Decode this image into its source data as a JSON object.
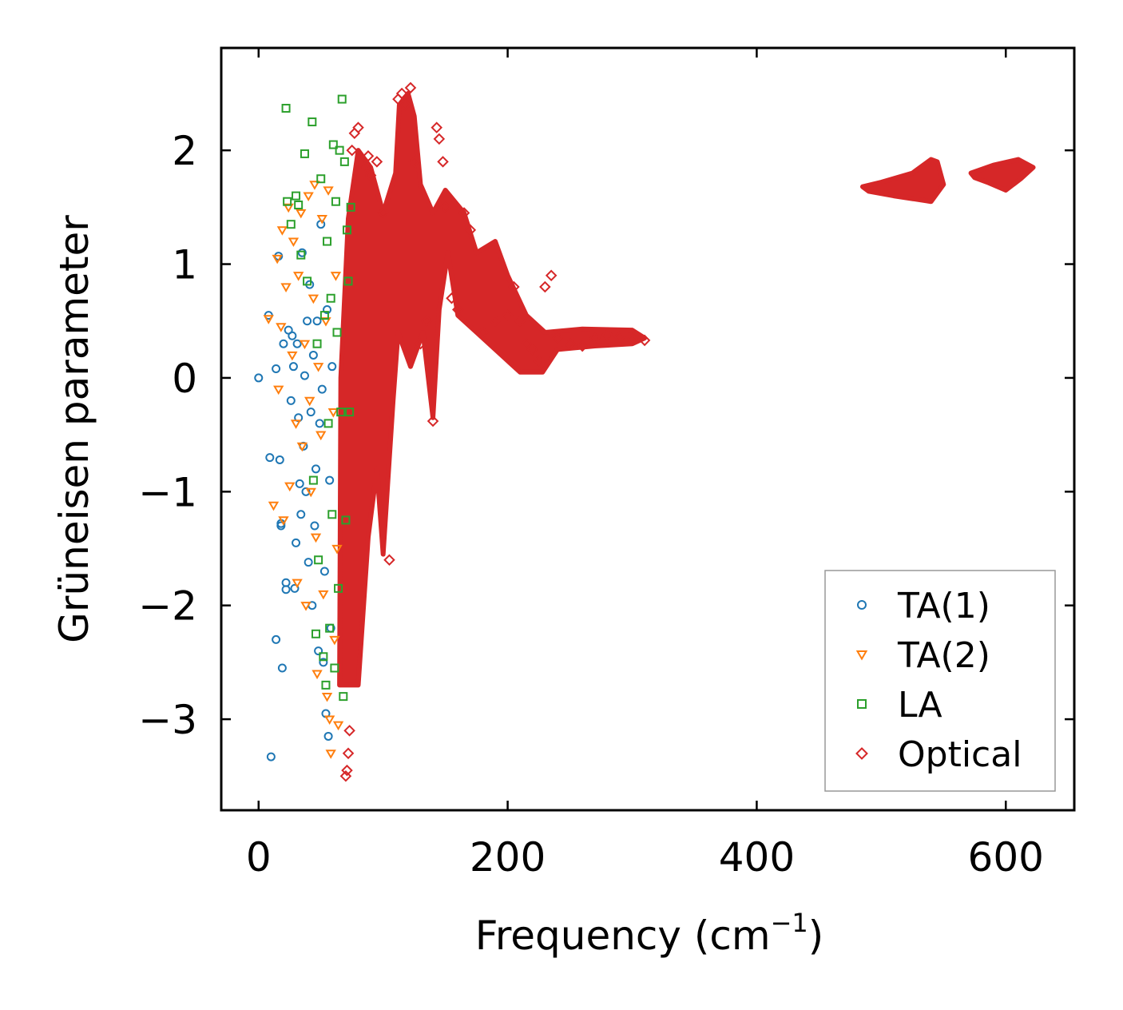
{
  "chart_data": {
    "type": "scatter",
    "title": "",
    "xlabel": "Frequency (cm",
    "xlabel_sup": "−1",
    "xlabel_end": ")",
    "ylabel": "Grüneisen parameter",
    "xlim": [
      -30,
      655
    ],
    "ylim": [
      -3.8,
      2.9
    ],
    "xticks": [
      0,
      200,
      400,
      600
    ],
    "xtick_labels": [
      "0",
      "200",
      "400",
      "600"
    ],
    "yticks": [
      -3,
      -2,
      -1,
      0,
      1,
      2
    ],
    "ytick_labels": [
      "−3",
      "−2",
      "−1",
      "0",
      "1",
      "2"
    ],
    "legend_position": "lower-right",
    "series": [
      {
        "name": "TA(1)",
        "marker": "circle",
        "color": "#1f77b4",
        "points": [
          [
            0,
            0
          ],
          [
            8,
            0.55
          ],
          [
            9,
            -0.7
          ],
          [
            10,
            -3.33
          ],
          [
            14,
            -2.3
          ],
          [
            14,
            0.08
          ],
          [
            16,
            1.07
          ],
          [
            17,
            -0.72
          ],
          [
            18,
            -1.28
          ],
          [
            18,
            -1.3
          ],
          [
            19,
            -2.55
          ],
          [
            20,
            0.3
          ],
          [
            22,
            -1.8
          ],
          [
            22,
            -1.86
          ],
          [
            24,
            0.42
          ],
          [
            26,
            -0.2
          ],
          [
            27,
            0.37
          ],
          [
            28,
            0.1
          ],
          [
            29,
            -1.85
          ],
          [
            30,
            -1.45
          ],
          [
            31,
            0.3
          ],
          [
            32,
            -0.35
          ],
          [
            33,
            -0.93
          ],
          [
            34,
            -1.2
          ],
          [
            35,
            1.1
          ],
          [
            36,
            -0.6
          ],
          [
            37,
            0.02
          ],
          [
            38,
            -1.0
          ],
          [
            39,
            0.5
          ],
          [
            40,
            -1.62
          ],
          [
            41,
            0.82
          ],
          [
            42,
            -0.3
          ],
          [
            43,
            -2.0
          ],
          [
            44,
            0.2
          ],
          [
            45,
            -1.3
          ],
          [
            46,
            -0.8
          ],
          [
            47,
            0.5
          ],
          [
            48,
            -2.4
          ],
          [
            49,
            -0.4
          ],
          [
            50,
            1.35
          ],
          [
            51,
            -0.1
          ],
          [
            52,
            -2.5
          ],
          [
            53,
            -1.7
          ],
          [
            54,
            -2.95
          ],
          [
            55,
            0.6
          ],
          [
            56,
            -3.15
          ],
          [
            57,
            -0.9
          ],
          [
            58,
            -2.2
          ],
          [
            59,
            0.1
          ]
        ]
      },
      {
        "name": "TA(2)",
        "marker": "triangle-down",
        "color": "#ff7f0e",
        "points": [
          [
            8,
            0.52
          ],
          [
            12,
            -1.12
          ],
          [
            15,
            1.05
          ],
          [
            16,
            -0.1
          ],
          [
            18,
            0.45
          ],
          [
            19,
            1.3
          ],
          [
            20,
            -1.25
          ],
          [
            22,
            0.8
          ],
          [
            24,
            1.5
          ],
          [
            25,
            -0.95
          ],
          [
            27,
            0.2
          ],
          [
            28,
            1.2
          ],
          [
            30,
            -0.4
          ],
          [
            31,
            -1.8
          ],
          [
            32,
            0.9
          ],
          [
            34,
            1.45
          ],
          [
            35,
            -0.6
          ],
          [
            37,
            0.3
          ],
          [
            38,
            -2.0
          ],
          [
            40,
            1.6
          ],
          [
            41,
            -0.2
          ],
          [
            42,
            -1.0
          ],
          [
            44,
            0.7
          ],
          [
            45,
            1.7
          ],
          [
            46,
            -1.4
          ],
          [
            47,
            -2.6
          ],
          [
            48,
            0.1
          ],
          [
            50,
            -0.5
          ],
          [
            51,
            1.4
          ],
          [
            52,
            -1.9
          ],
          [
            54,
            0.5
          ],
          [
            55,
            -2.8
          ],
          [
            56,
            1.65
          ],
          [
            57,
            -3.0
          ],
          [
            58,
            -3.3
          ],
          [
            60,
            -0.3
          ],
          [
            61,
            -2.3
          ],
          [
            62,
            0.9
          ],
          [
            63,
            -1.5
          ],
          [
            64,
            -3.05
          ]
        ]
      },
      {
        "name": "LA",
        "marker": "square",
        "color": "#2ca02c",
        "points": [
          [
            22,
            2.37
          ],
          [
            23,
            1.55
          ],
          [
            26,
            1.35
          ],
          [
            30,
            1.6
          ],
          [
            32,
            1.52
          ],
          [
            34,
            1.08
          ],
          [
            37,
            1.97
          ],
          [
            39,
            0.85
          ],
          [
            43,
            2.25
          ],
          [
            44,
            -0.9
          ],
          [
            46,
            -2.25
          ],
          [
            47,
            0.3
          ],
          [
            48,
            -1.6
          ],
          [
            50,
            1.75
          ],
          [
            52,
            -2.45
          ],
          [
            53,
            0.55
          ],
          [
            54,
            -2.7
          ],
          [
            55,
            1.2
          ],
          [
            56,
            -0.4
          ],
          [
            57,
            -2.2
          ],
          [
            58,
            0.7
          ],
          [
            59,
            -1.2
          ],
          [
            60,
            2.05
          ],
          [
            61,
            -2.55
          ],
          [
            62,
            1.55
          ],
          [
            63,
            0.4
          ],
          [
            64,
            -1.85
          ],
          [
            65,
            2.0
          ],
          [
            66,
            -0.3
          ],
          [
            67,
            2.45
          ],
          [
            68,
            -2.8
          ],
          [
            69,
            1.9
          ],
          [
            70,
            -1.25
          ],
          [
            71,
            1.3
          ],
          [
            72,
            0.85
          ],
          [
            73,
            -0.3
          ],
          [
            74,
            1.5
          ]
        ]
      },
      {
        "name": "Optical",
        "marker": "diamond",
        "color": "#d62728",
        "points": [
          [
            70,
            -3.5
          ],
          [
            71,
            -3.45
          ],
          [
            72,
            -3.3
          ],
          [
            73,
            -3.1
          ],
          [
            75,
            2.0
          ],
          [
            77,
            2.15
          ],
          [
            80,
            2.2
          ],
          [
            85,
            1.85
          ],
          [
            88,
            1.95
          ],
          [
            90,
            1.78
          ],
          [
            95,
            1.9
          ],
          [
            100,
            1.45
          ],
          [
            105,
            -1.6
          ],
          [
            112,
            2.45
          ],
          [
            115,
            2.5
          ],
          [
            118,
            2.4
          ],
          [
            122,
            2.55
          ],
          [
            125,
            1.9
          ],
          [
            130,
            0.3
          ],
          [
            135,
            0.5
          ],
          [
            140,
            -0.38
          ],
          [
            143,
            2.2
          ],
          [
            145,
            2.1
          ],
          [
            148,
            1.9
          ],
          [
            150,
            1.5
          ],
          [
            155,
            0.7
          ],
          [
            160,
            0.6
          ],
          [
            165,
            1.45
          ],
          [
            170,
            1.3
          ],
          [
            180,
            0.4
          ],
          [
            190,
            0.5
          ],
          [
            200,
            0.55
          ],
          [
            205,
            0.8
          ],
          [
            210,
            0.5
          ],
          [
            215,
            0.3
          ],
          [
            220,
            0.25
          ],
          [
            225,
            0.15
          ],
          [
            230,
            0.8
          ],
          [
            235,
            0.9
          ],
          [
            240,
            0.35
          ],
          [
            250,
            0.3
          ],
          [
            260,
            0.28
          ],
          [
            270,
            0.35
          ],
          [
            280,
            0.38
          ],
          [
            290,
            0.36
          ],
          [
            300,
            0.34
          ],
          [
            310,
            0.33
          ]
        ]
      }
    ]
  }
}
